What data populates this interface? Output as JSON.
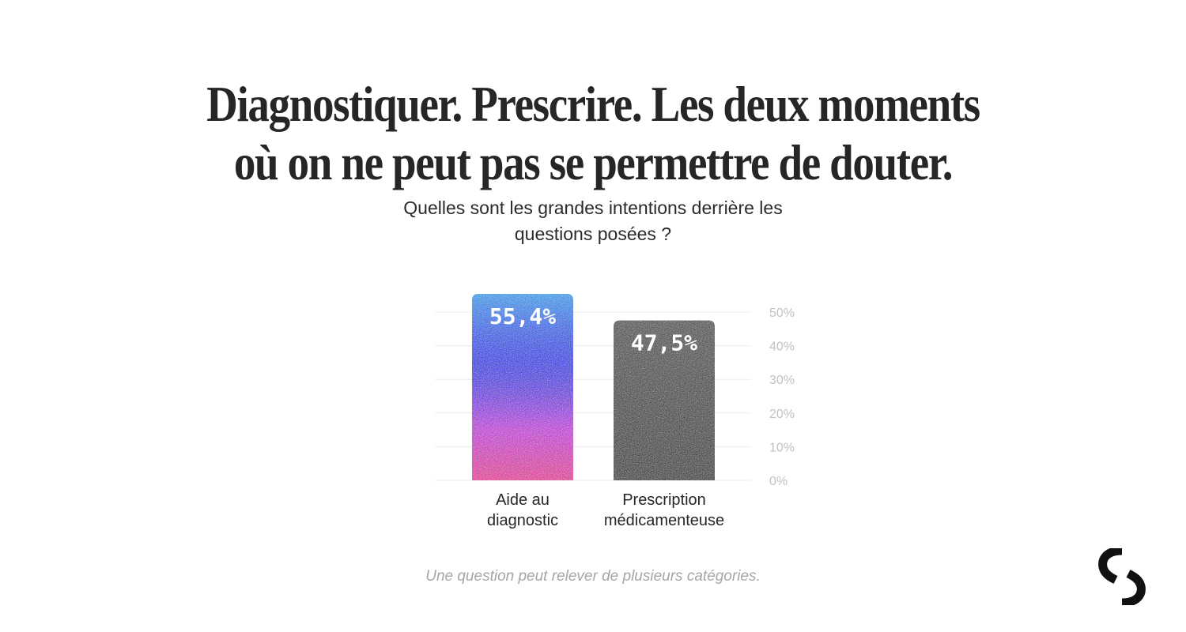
{
  "headline": {
    "line1": "Diagnostiquer. Prescrire. Les deux moments",
    "line2": "où on ne peut pas se permettre de douter."
  },
  "question": {
    "line1": "Quelles sont les grandes intentions derrière les",
    "line2": "questions posées ?"
  },
  "chart_data": {
    "type": "bar",
    "categories": [
      [
        "Aide au",
        "diagnostic"
      ],
      [
        "Prescription",
        "médicamenteuse"
      ]
    ],
    "values": [
      55.4,
      47.5
    ],
    "value_labels": [
      "55,4%",
      "47,5%"
    ],
    "ylim": [
      0,
      55.4
    ],
    "yticks": [
      0,
      10,
      20,
      30,
      40,
      50
    ],
    "ytick_labels": [
      "0%",
      "10%",
      "20%",
      "30%",
      "40%",
      "50%"
    ],
    "y_axis_position": "right",
    "grid": true,
    "colors": {
      "bar1_top": "#12a4f7",
      "bar1_mid": "#1426f0",
      "bar1_low": "#c81ee6",
      "bar1_bottom": "#f0129a",
      "bar2_top": "#4a4a4a",
      "bar2_bottom": "#262626",
      "grid": "#ececec",
      "tick": "#c2c2c2"
    }
  },
  "footnote": "Une question peut relever de plusieurs catégories.",
  "logo": {
    "icon": "s-logo-icon"
  }
}
